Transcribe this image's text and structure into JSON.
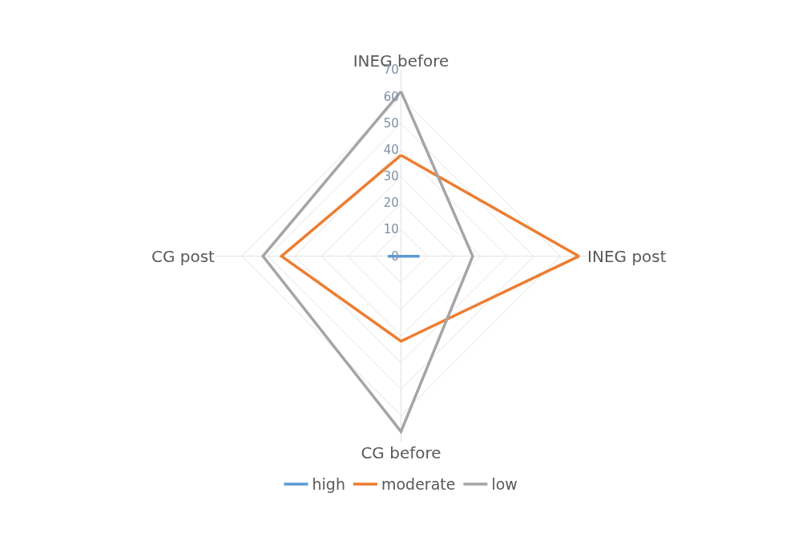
{
  "chart_data": {
    "type": "radar",
    "categories": [
      "INEG before",
      "INEG post",
      "CG before",
      "CG post"
    ],
    "series": [
      {
        "name": "high",
        "color": "#5b9bd5",
        "values": [
          0,
          7,
          0,
          5
        ]
      },
      {
        "name": "moderate",
        "color": "#ed7d31",
        "values": [
          38,
          67,
          32,
          45
        ]
      },
      {
        "name": "low",
        "color": "#a5a5a5",
        "values": [
          62,
          27,
          66,
          52
        ]
      }
    ],
    "ylim": [
      0,
      70
    ],
    "yticks": [
      0,
      10,
      20,
      30,
      40,
      50,
      60,
      70
    ],
    "grid": true,
    "legend": "bottom",
    "marker": "none"
  }
}
